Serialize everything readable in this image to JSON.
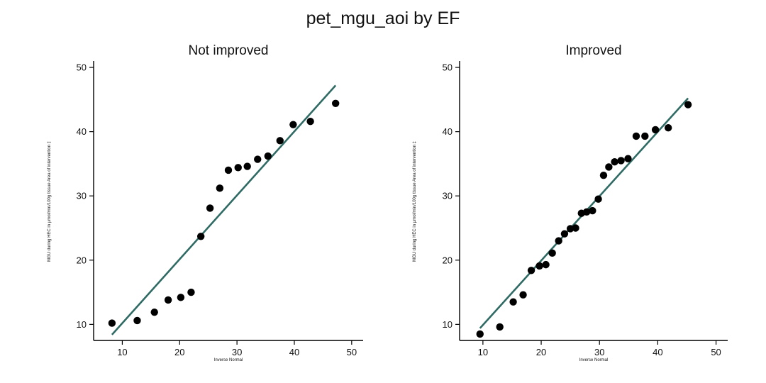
{
  "figure": {
    "title": "pet_mgu_aoi by EF"
  },
  "chart_data": [
    {
      "type": "scatter",
      "title": "Not improved",
      "xlabel": "Inverse Normal",
      "ylabel": "MGU during HEC in µmol/min/100g tissue Area of intervention ‡",
      "xlim": [
        5,
        52
      ],
      "ylim": [
        7.5,
        51
      ],
      "xticks": [
        10,
        20,
        30,
        40,
        50
      ],
      "yticks": [
        10,
        20,
        30,
        40,
        50
      ],
      "colors": {
        "points": "#000000",
        "line": "#2f6b64"
      },
      "fit_line": {
        "x": [
          8.2,
          47.2
        ],
        "y": [
          8.4,
          47.2
        ]
      },
      "points": [
        {
          "x": 8.2,
          "y": 10.2
        },
        {
          "x": 12.6,
          "y": 10.6
        },
        {
          "x": 15.6,
          "y": 11.9
        },
        {
          "x": 18.0,
          "y": 13.8
        },
        {
          "x": 20.2,
          "y": 14.2
        },
        {
          "x": 22.0,
          "y": 15.0
        },
        {
          "x": 23.7,
          "y": 23.7
        },
        {
          "x": 25.3,
          "y": 28.1
        },
        {
          "x": 27.0,
          "y": 31.2
        },
        {
          "x": 28.5,
          "y": 34.0
        },
        {
          "x": 30.2,
          "y": 34.4
        },
        {
          "x": 31.8,
          "y": 34.6
        },
        {
          "x": 33.6,
          "y": 35.7
        },
        {
          "x": 35.4,
          "y": 36.2
        },
        {
          "x": 37.5,
          "y": 38.6
        },
        {
          "x": 39.8,
          "y": 41.1
        },
        {
          "x": 42.8,
          "y": 41.6
        },
        {
          "x": 47.2,
          "y": 44.4
        }
      ]
    },
    {
      "type": "scatter",
      "title": "Improved",
      "xlabel": "Inverse Normal",
      "ylabel": "MGU during HEC in µmol/min/100g tissue Area of intervention ‡",
      "xlim": [
        6,
        52
      ],
      "ylim": [
        7.5,
        51
      ],
      "xticks": [
        10,
        20,
        30,
        40,
        50
      ],
      "yticks": [
        10,
        20,
        30,
        40,
        50
      ],
      "colors": {
        "points": "#000000",
        "line": "#2f6b64"
      },
      "fit_line": {
        "x": [
          9.5,
          45.2
        ],
        "y": [
          9.4,
          45.2
        ]
      },
      "points": [
        {
          "x": 9.5,
          "y": 8.5
        },
        {
          "x": 12.9,
          "y": 9.6
        },
        {
          "x": 15.2,
          "y": 13.5
        },
        {
          "x": 16.9,
          "y": 14.6
        },
        {
          "x": 18.3,
          "y": 18.4
        },
        {
          "x": 19.7,
          "y": 19.1
        },
        {
          "x": 20.8,
          "y": 19.3
        },
        {
          "x": 21.9,
          "y": 21.1
        },
        {
          "x": 23.0,
          "y": 23.0
        },
        {
          "x": 24.0,
          "y": 24.1
        },
        {
          "x": 25.0,
          "y": 24.9
        },
        {
          "x": 25.9,
          "y": 25.0
        },
        {
          "x": 26.9,
          "y": 27.3
        },
        {
          "x": 27.8,
          "y": 27.5
        },
        {
          "x": 28.8,
          "y": 27.7
        },
        {
          "x": 29.8,
          "y": 29.5
        },
        {
          "x": 30.7,
          "y": 33.2
        },
        {
          "x": 31.6,
          "y": 34.5
        },
        {
          "x": 32.6,
          "y": 35.3
        },
        {
          "x": 33.7,
          "y": 35.5
        },
        {
          "x": 34.9,
          "y": 35.8
        },
        {
          "x": 36.3,
          "y": 39.3
        },
        {
          "x": 37.8,
          "y": 39.3
        },
        {
          "x": 39.6,
          "y": 40.3
        },
        {
          "x": 41.8,
          "y": 40.6
        },
        {
          "x": 45.2,
          "y": 44.2
        }
      ]
    }
  ]
}
